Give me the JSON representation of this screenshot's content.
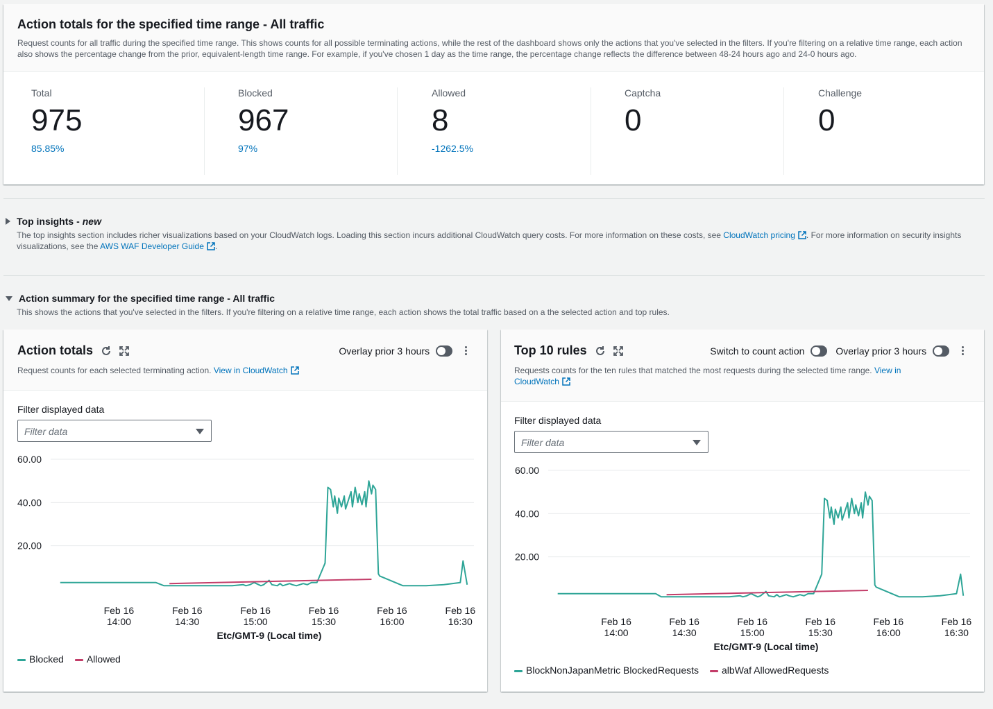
{
  "totals": {
    "title": "Action totals for the specified time range - All traffic",
    "description": "Request counts for all traffic during the specified time range. This shows counts for all possible terminating actions, while the rest of the dashboard shows only the actions that you've selected in the filters. If you're filtering on a relative time range, each action also shows the percentage change from the prior, equivalent-length time range. For example, if you've chosen 1 day as the time range, the percentage change reflects the difference between 48-24 hours ago and 24-0 hours ago.",
    "metrics": [
      {
        "label": "Total",
        "value": "975",
        "change": "85.85%"
      },
      {
        "label": "Blocked",
        "value": "967",
        "change": "97%"
      },
      {
        "label": "Allowed",
        "value": "8",
        "change": "-1262.5%"
      },
      {
        "label": "Captcha",
        "value": "0",
        "change": ""
      },
      {
        "label": "Challenge",
        "value": "0",
        "change": ""
      }
    ]
  },
  "insights": {
    "title": "Top insights - ",
    "badge": "new",
    "text_1": "The top insights section includes richer visualizations based on your CloudWatch logs. Loading this section incurs additional CloudWatch query costs. For more information on these costs, see ",
    "link_1": "CloudWatch pricing",
    "text_2": ". For more information on security insights visualizations, see the ",
    "link_2": "AWS WAF Developer Guide",
    "text_3": "."
  },
  "summary": {
    "title": "Action summary for the specified time range - All traffic",
    "description": "This shows the actions that you've selected in the filters. If you're filtering on a relative time range, each action shows the total traffic based on a the selected action and top rules."
  },
  "action_totals": {
    "title": "Action totals",
    "overlay_label": "Overlay prior 3 hours",
    "description": "Request counts for each selected terminating action. ",
    "link": "View in CloudWatch",
    "filter_label": "Filter displayed data",
    "filter_placeholder": "Filter data",
    "legend": [
      "Blocked",
      "Allowed"
    ]
  },
  "top_rules": {
    "title": "Top 10 rules",
    "switch_label": "Switch to count action",
    "overlay_label": "Overlay prior 3 hours",
    "description": "Requests counts for the ten rules that matched the most requests during the selected time range. ",
    "link_a": "View in",
    "link_b": "CloudWatch",
    "filter_label": "Filter displayed data",
    "filter_placeholder": "Filter data",
    "legend": [
      "BlockNonJapanMetric BlockedRequests",
      "albWaf AllowedRequests"
    ]
  },
  "colors": {
    "teal": "#2ea597",
    "pink": "#c33d69",
    "link": "#0073bb"
  },
  "chart_data": [
    {
      "type": "line",
      "ylim": [
        0,
        60
      ],
      "yticks": [
        "60.00",
        "40.00",
        "20.00"
      ],
      "xlabel": "Etc/GMT-9 (Local time)",
      "xticks": [
        {
          "t": 14.0,
          "d": "Feb 16",
          "h": "14:00"
        },
        {
          "t": 14.5,
          "d": "Feb 16",
          "h": "14:30"
        },
        {
          "t": 15.0,
          "d": "Feb 16",
          "h": "15:00"
        },
        {
          "t": 15.5,
          "d": "Feb 16",
          "h": "15:30"
        },
        {
          "t": 16.0,
          "d": "Feb 16",
          "h": "16:00"
        },
        {
          "t": 16.5,
          "d": "Feb 16",
          "h": "16:30"
        }
      ],
      "series": [
        {
          "name": "Blocked",
          "color": "#2ea597",
          "x": [
            13.57,
            13.85,
            14.0,
            14.2,
            14.27,
            14.33,
            14.5,
            14.67,
            14.83,
            14.91,
            14.93,
            14.96,
            14.99,
            15.04,
            15.06,
            15.1,
            15.12,
            15.16,
            15.18,
            15.2,
            15.25,
            15.27,
            15.3,
            15.35,
            15.38,
            15.41,
            15.45,
            15.51,
            15.53,
            15.55,
            15.57,
            15.58,
            15.6,
            15.61,
            15.63,
            15.65,
            15.66,
            15.68,
            15.7,
            15.71,
            15.73,
            15.75,
            15.76,
            15.78,
            15.8,
            15.81,
            15.83,
            15.85,
            15.86,
            15.88,
            15.9,
            15.91,
            16.08,
            16.12,
            16.25,
            16.38,
            16.5,
            16.52,
            16.55
          ],
          "y": [
            3,
            3,
            3,
            3,
            3,
            1.5,
            1.5,
            1.5,
            1.5,
            2,
            1.5,
            2,
            3,
            1.5,
            2,
            4,
            2,
            1.5,
            2.5,
            1.5,
            2.5,
            2,
            1.5,
            2.5,
            2,
            3,
            3,
            12,
            47,
            46,
            38,
            43,
            35,
            42,
            38,
            43,
            37,
            41,
            45,
            38,
            47,
            40,
            44,
            39,
            45,
            38,
            50,
            44,
            48,
            46,
            7,
            6,
            1.5,
            1.5,
            1.5,
            2,
            3,
            13,
            2
          ]
        },
        {
          "name": "Allowed",
          "color": "#c33d69",
          "x": [
            14.37,
            15.85
          ],
          "y": [
            2.5,
            4.5
          ]
        }
      ]
    },
    {
      "type": "line",
      "ylim": [
        0,
        60
      ],
      "yticks": [
        "60.00",
        "40.00",
        "20.00"
      ],
      "xlabel": "Etc/GMT-9 (Local time)",
      "xticks": [
        {
          "t": 14.0,
          "d": "Feb 16",
          "h": "14:00"
        },
        {
          "t": 14.5,
          "d": "Feb 16",
          "h": "14:30"
        },
        {
          "t": 15.0,
          "d": "Feb 16",
          "h": "15:00"
        },
        {
          "t": 15.5,
          "d": "Feb 16",
          "h": "15:30"
        },
        {
          "t": 16.0,
          "d": "Feb 16",
          "h": "16:00"
        },
        {
          "t": 16.5,
          "d": "Feb 16",
          "h": "16:30"
        }
      ],
      "series": [
        {
          "name": "BlockNonJapanMetric BlockedRequests",
          "color": "#2ea597",
          "x": [
            13.57,
            13.85,
            14.0,
            14.2,
            14.29,
            14.33,
            14.5,
            14.67,
            14.83,
            14.91,
            14.93,
            14.96,
            14.99,
            15.04,
            15.06,
            15.1,
            15.12,
            15.16,
            15.18,
            15.2,
            15.25,
            15.27,
            15.3,
            15.35,
            15.38,
            15.41,
            15.45,
            15.51,
            15.53,
            15.55,
            15.57,
            15.58,
            15.6,
            15.61,
            15.63,
            15.65,
            15.66,
            15.68,
            15.7,
            15.71,
            15.73,
            15.75,
            15.76,
            15.78,
            15.8,
            15.81,
            15.83,
            15.85,
            15.86,
            15.88,
            15.9,
            15.91,
            16.08,
            16.12,
            16.25,
            16.38,
            16.5,
            16.53,
            16.55
          ],
          "y": [
            3,
            3,
            3,
            3,
            3,
            1.5,
            1.5,
            1.5,
            1.5,
            2,
            1.5,
            2,
            3,
            1.5,
            2,
            4,
            2,
            1.5,
            2.5,
            1.5,
            2.5,
            2,
            1.5,
            2.5,
            2,
            3,
            3,
            12,
            47,
            46,
            38,
            43,
            35,
            42,
            38,
            43,
            37,
            41,
            45,
            38,
            47,
            40,
            44,
            39,
            45,
            38,
            50,
            44,
            48,
            46,
            7,
            6,
            1.5,
            1.5,
            1.5,
            2,
            3,
            12,
            2
          ]
        },
        {
          "name": "albWaf AllowedRequests",
          "color": "#c33d69",
          "x": [
            14.37,
            15.85
          ],
          "y": [
            2.5,
            4.5
          ]
        }
      ]
    }
  ]
}
